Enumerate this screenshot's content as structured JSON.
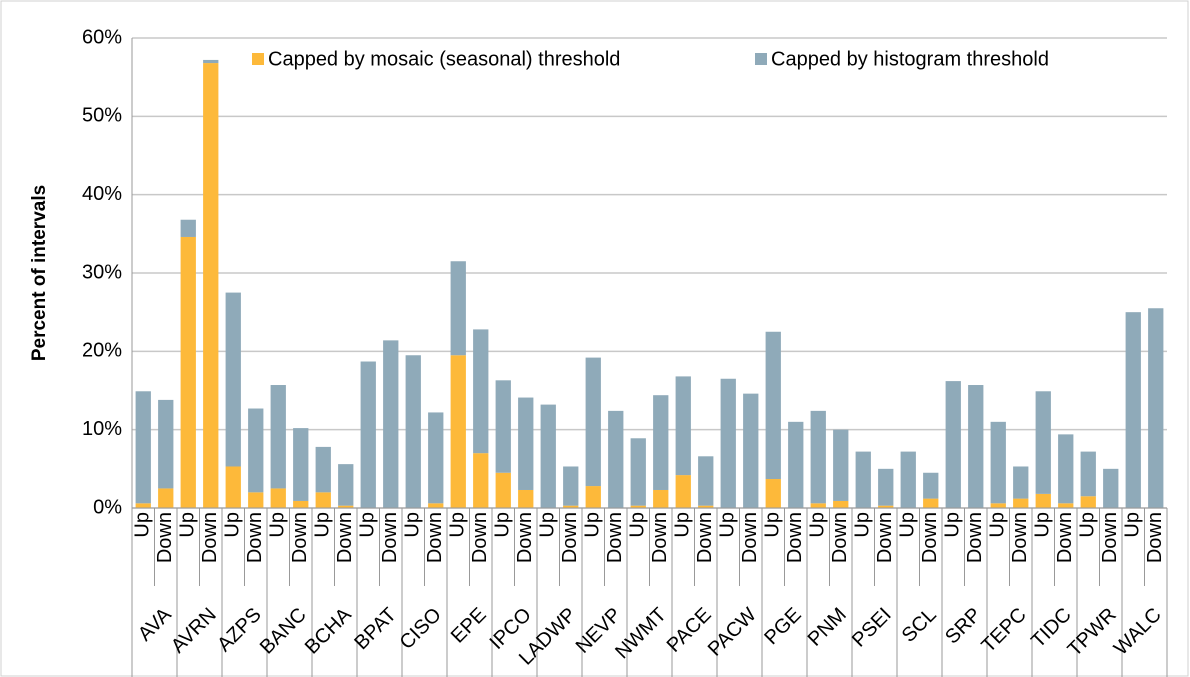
{
  "chart_data": {
    "type": "stacked_bar",
    "y_label": "Percent of intervals",
    "groups": [
      "AVA",
      "AVRN",
      "AZPS",
      "BANC",
      "BCHA",
      "BPAT",
      "CISO",
      "EPE",
      "IPCO",
      "LADWP",
      "NEVP",
      "NWMT",
      "PACE",
      "PACW",
      "PGE",
      "PNM",
      "PSEI",
      "SCL",
      "SRP",
      "TEPC",
      "TIDC",
      "TPWR",
      "WALC"
    ],
    "categories": [
      "Up",
      "Down",
      "Up",
      "Down",
      "Up",
      "Down",
      "Up",
      "Down",
      "Up",
      "Down",
      "Up",
      "Down",
      "Up",
      "Down",
      "Up",
      "Down",
      "Up",
      "Down",
      "Up",
      "Down",
      "Up",
      "Down",
      "Up",
      "Down",
      "Up",
      "Down",
      "Up",
      "Down",
      "Up",
      "Down",
      "Up",
      "Down",
      "Up",
      "Down",
      "Up",
      "Down",
      "Up",
      "Down",
      "Up",
      "Down",
      "Up",
      "Down",
      "Up",
      "Down",
      "Up",
      "Down"
    ],
    "series": [
      {
        "name": "Capped by mosaic (seasonal) threshold",
        "color": "#fdb93a",
        "values": [
          0.6,
          2.5,
          34.6,
          56.8,
          5.3,
          2.0,
          2.5,
          0.9,
          2.0,
          0.3,
          0,
          0,
          0,
          0.6,
          19.5,
          7.0,
          4.5,
          2.3,
          0,
          0.3,
          2.8,
          0,
          0.3,
          2.3,
          4.2,
          0.3,
          0,
          0,
          3.7,
          0,
          0.6,
          0.9,
          0,
          0.3,
          0,
          1.2,
          0,
          0,
          0.6,
          1.2,
          1.8,
          0.6,
          1.5,
          0,
          0,
          0
        ]
      },
      {
        "name": "Capped by histogram threshold",
        "color": "#8faab9",
        "values": [
          14.3,
          11.3,
          2.2,
          0.4,
          22.2,
          10.7,
          13.2,
          9.3,
          5.8,
          5.3,
          18.7,
          21.4,
          19.5,
          11.6,
          12.0,
          15.8,
          11.8,
          11.8,
          13.2,
          5.0,
          16.4,
          12.4,
          8.6,
          12.1,
          12.6,
          6.3,
          16.5,
          14.6,
          18.8,
          11.0,
          11.8,
          9.1,
          7.2,
          4.7,
          7.2,
          3.3,
          16.2,
          15.7,
          10.4,
          4.1,
          13.1,
          8.8,
          5.7,
          5.0,
          25.0,
          25.5
        ]
      }
    ],
    "ylim": [
      0,
      60
    ],
    "yticks": [
      {
        "value": 0,
        "label": "0%"
      },
      {
        "value": 10,
        "label": "10%"
      },
      {
        "value": 20,
        "label": "20%"
      },
      {
        "value": 30,
        "label": "30%"
      },
      {
        "value": 40,
        "label": "40%"
      },
      {
        "value": 50,
        "label": "50%"
      },
      {
        "value": 60,
        "label": "60%"
      }
    ],
    "grid": true
  }
}
